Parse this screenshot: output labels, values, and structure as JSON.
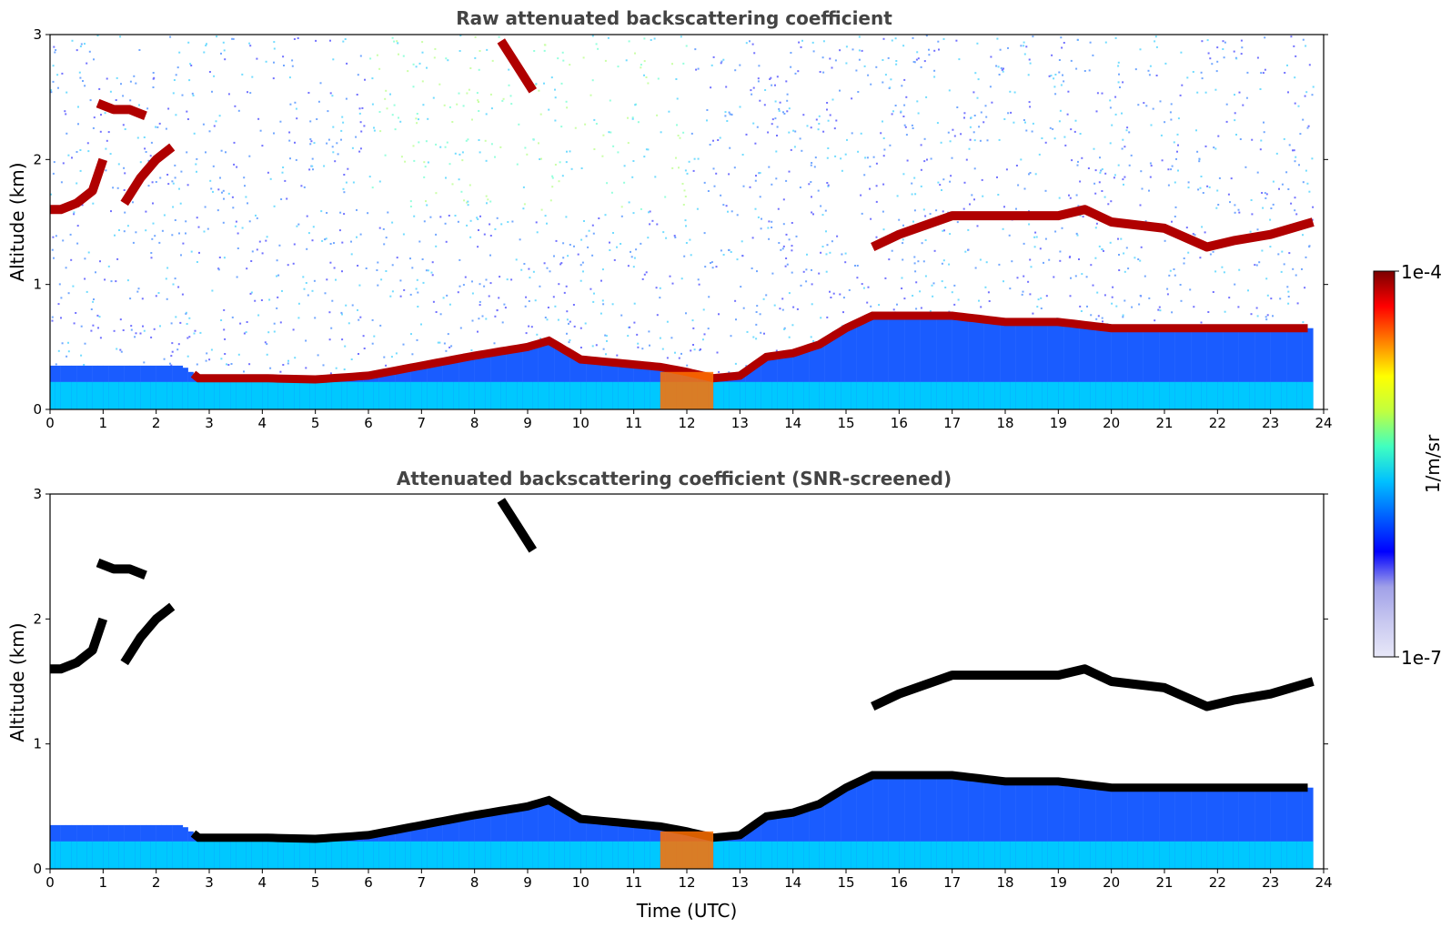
{
  "chart_data": [
    {
      "type": "heatmap",
      "title": "Raw attenuated backscattering coefficient",
      "xlabel": "",
      "ylabel": "Altitude (km)",
      "xlim": [
        0,
        24
      ],
      "ylim": [
        0,
        3
      ],
      "x_ticks": [
        "0",
        "1",
        "2",
        "3",
        "4",
        "5",
        "6",
        "7",
        "8",
        "9",
        "10",
        "11",
        "12",
        "13",
        "14",
        "15",
        "16",
        "17",
        "18",
        "19",
        "20",
        "21",
        "22",
        "23",
        "24"
      ],
      "y_ticks": [
        "0",
        "1",
        "2",
        "3"
      ],
      "data_extent_hours": [
        0,
        23.8
      ],
      "boundary_layer_top_km": {
        "time_utc": [
          0,
          2.5,
          2.8,
          4,
          5,
          6,
          7,
          8,
          9,
          9.4,
          10,
          11,
          11.5,
          12,
          12.5,
          13,
          13.5,
          14,
          14.5,
          15,
          15.5,
          16,
          17,
          18,
          19,
          20,
          21,
          22,
          23,
          23.8
        ],
        "altitude_km": [
          0.35,
          0.35,
          0.25,
          0.25,
          0.24,
          0.27,
          0.35,
          0.43,
          0.5,
          0.55,
          0.4,
          0.36,
          0.34,
          0.3,
          0.25,
          0.27,
          0.42,
          0.45,
          0.52,
          0.65,
          0.75,
          0.75,
          0.75,
          0.7,
          0.7,
          0.65,
          0.65,
          0.65,
          0.65,
          0.65
        ]
      },
      "cloud_layers_km": [
        {
          "time_utc": [
            0,
            0.2,
            0.5,
            0.8,
            1.0
          ],
          "altitude_km": [
            1.6,
            1.6,
            1.65,
            1.75,
            2.0
          ]
        },
        {
          "time_utc": [
            0.9,
            1.2,
            1.5,
            1.8
          ],
          "altitude_km": [
            2.45,
            2.4,
            2.4,
            2.35
          ]
        },
        {
          "time_utc": [
            1.4,
            1.7,
            2.0,
            2.3
          ],
          "altitude_km": [
            1.65,
            1.85,
            2.0,
            2.1
          ]
        },
        {
          "time_utc": [
            8.5,
            8.8,
            9.1
          ],
          "altitude_km": [
            2.95,
            2.75,
            2.55
          ]
        },
        {
          "time_utc": [
            15.5,
            16,
            17,
            18,
            18.5,
            19,
            19.5,
            20,
            21,
            21.8,
            22.3,
            23,
            23.8
          ],
          "altitude_km": [
            1.3,
            1.4,
            1.55,
            1.55,
            1.55,
            1.55,
            1.6,
            1.5,
            1.45,
            1.3,
            1.35,
            1.4,
            1.5
          ]
        }
      ]
    },
    {
      "type": "heatmap",
      "title": "Attenuated backscattering coefficient (SNR-screened)",
      "xlabel": "Time (UTC)",
      "ylabel": "Altitude (km)",
      "xlim": [
        0,
        24
      ],
      "ylim": [
        0,
        3
      ],
      "x_ticks": [
        "0",
        "1",
        "2",
        "3",
        "4",
        "5",
        "6",
        "7",
        "8",
        "9",
        "10",
        "11",
        "12",
        "13",
        "14",
        "15",
        "16",
        "17",
        "18",
        "19",
        "20",
        "21",
        "22",
        "23",
        "24"
      ],
      "y_ticks": [
        "0",
        "1",
        "2",
        "3"
      ],
      "saturated_color": "#000000"
    }
  ],
  "colorbar": {
    "max_label": "1e-4",
    "min_label": "1e-7",
    "unit_label": "1/m/sr",
    "colors": [
      "#e8e8f8",
      "#c8c8f0",
      "#a0a0e8",
      "#0000ff",
      "#0060ff",
      "#00c0ff",
      "#40ffc0",
      "#c0ff40",
      "#ffff00",
      "#ff8000",
      "#ff0000",
      "#7a0000"
    ]
  }
}
